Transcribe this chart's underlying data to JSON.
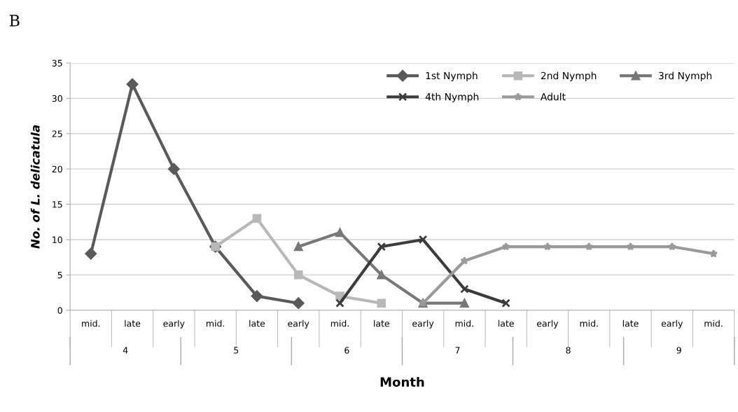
{
  "chart_data": {
    "type": "line",
    "title": "B",
    "xlabel": "Month",
    "ylabel": "No. of L. delicatula",
    "categories": [
      "mid.",
      "late",
      "early",
      "mid.",
      "late",
      "early",
      "mid.",
      "late",
      "early",
      "mid.",
      "late",
      "early",
      "mid.",
      "late",
      "early",
      "mid."
    ],
    "annotations": [
      "4",
      "5",
      "6",
      "7",
      "8",
      "9"
    ],
    "ylim": [
      0,
      35
    ],
    "yticks": [
      0,
      5,
      10,
      15,
      20,
      25,
      30,
      35
    ],
    "grid": "y",
    "legend": "top right",
    "series": [
      {
        "name": "1st Nymph",
        "color": "#5a5a5a",
        "marker": "diamond",
        "values": [
          8,
          32,
          20,
          9,
          2,
          1,
          null,
          null,
          null,
          null,
          null,
          null,
          null,
          null,
          null,
          null
        ]
      },
      {
        "name": "2nd Nymph",
        "color": "#b8b8b8",
        "marker": "square",
        "values": [
          null,
          null,
          null,
          9,
          13,
          5,
          2,
          1,
          null,
          null,
          null,
          null,
          null,
          null,
          null,
          null
        ]
      },
      {
        "name": "3rd Nymph",
        "color": "#787878",
        "marker": "triangle",
        "values": [
          null,
          null,
          null,
          null,
          null,
          9,
          11,
          5,
          1,
          1,
          null,
          null,
          null,
          null,
          null,
          null
        ]
      },
      {
        "name": "4th Nymph",
        "color": "#3c3c3c",
        "marker": "cross",
        "values": [
          null,
          null,
          null,
          null,
          null,
          null,
          1,
          9,
          10,
          3,
          1,
          null,
          null,
          null,
          null,
          null
        ]
      },
      {
        "name": "Adult",
        "color": "#9a9a9a",
        "marker": "star",
        "values": [
          null,
          null,
          null,
          null,
          null,
          null,
          null,
          null,
          1,
          7,
          9,
          9,
          9,
          9,
          9,
          8
        ]
      }
    ]
  }
}
